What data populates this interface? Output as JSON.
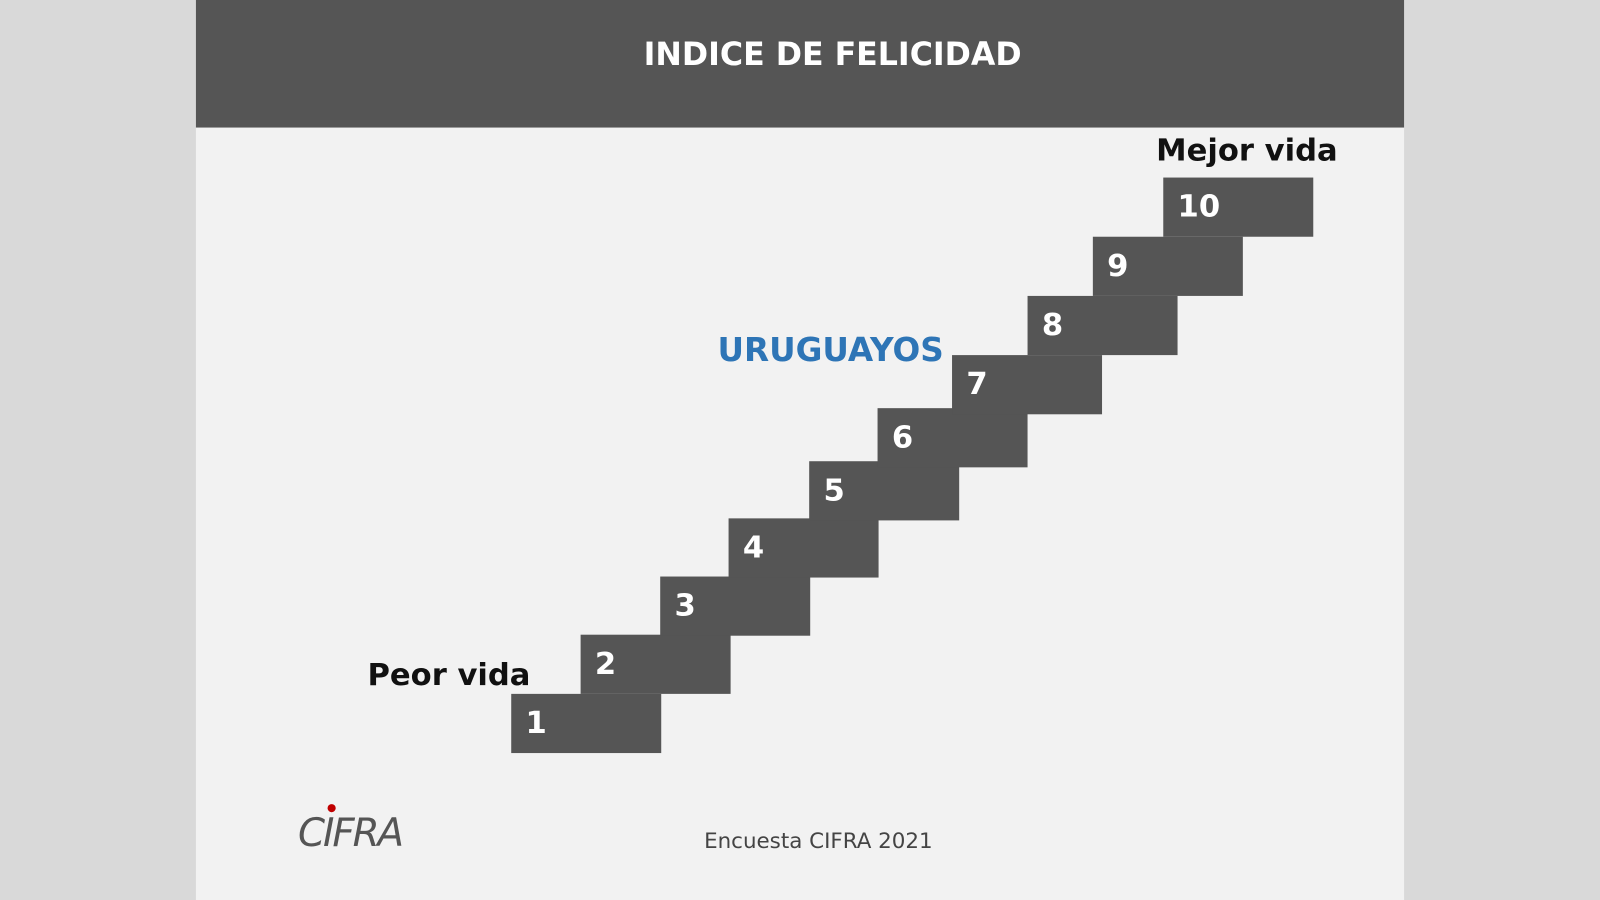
{
  "title": "INDICE DE FELICIDAD",
  "labels": {
    "best": "Mejor vida",
    "worst": "Peor vida",
    "highlight": "URUGUAYOS"
  },
  "steps": [
    "1",
    "2",
    "3",
    "4",
    "5",
    "6",
    "7",
    "8",
    "9",
    "10"
  ],
  "footer": "Encuesta CIFRA 2021",
  "logo": "CIFRA"
}
